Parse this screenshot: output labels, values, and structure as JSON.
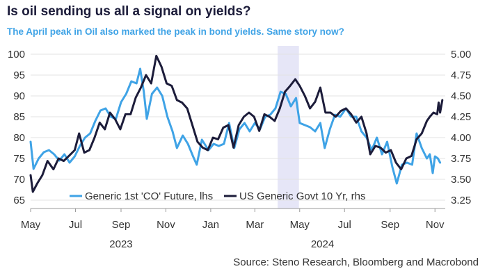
{
  "header": {
    "title": "Is oil sending us all a signal on yields?",
    "subtitle": "The April peak in Oil also marked the peak in bond yields. Same story now?"
  },
  "footer": {
    "source": "Source: Steno Research, Bloomberg and Macrobond"
  },
  "colors": {
    "oil": "#3fa3e6",
    "yield": "#1c1c3a",
    "highlight": "#e6e6f7",
    "grid": "#e3e3e3"
  },
  "chart_data": {
    "type": "line",
    "title": "Is oil sending us all a signal on yields?",
    "subtitle": "The April peak in Oil also marked the peak in bond yields. Same story now?",
    "xlim": [
      "2023-05-01",
      "2024-11-15"
    ],
    "ylim_left": [
      63,
      102
    ],
    "ylim_right": [
      3.15,
      5.1
    ],
    "y_ticks_left": [
      65,
      70,
      75,
      80,
      85,
      90,
      95,
      100
    ],
    "y_ticks_right": [
      "3.25",
      "3.50",
      "3.75",
      "4.00",
      "4.25",
      "4.50",
      "4.75",
      "5.00"
    ],
    "y_ticks_right_values": [
      3.25,
      3.5,
      3.75,
      4.0,
      4.25,
      4.5,
      4.75,
      5.0
    ],
    "x_ticks": [
      {
        "date": "2023-05-01",
        "label": "May"
      },
      {
        "date": "2023-07-01",
        "label": "Jul"
      },
      {
        "date": "2023-09-01",
        "label": "Sep"
      },
      {
        "date": "2023-11-01",
        "label": "Nov"
      },
      {
        "date": "2024-01-01",
        "label": "Jan"
      },
      {
        "date": "2024-03-01",
        "label": "Mar"
      },
      {
        "date": "2024-05-01",
        "label": "May"
      },
      {
        "date": "2024-07-01",
        "label": "Jul"
      },
      {
        "date": "2024-09-01",
        "label": "Sep"
      },
      {
        "date": "2024-11-01",
        "label": "Nov"
      }
    ],
    "year_labels": [
      {
        "date": "2023-09-01",
        "label": "2023"
      },
      {
        "date": "2024-06-01",
        "label": "2024"
      }
    ],
    "highlight_band": [
      "2024-04-01",
      "2024-04-30"
    ],
    "grid": true,
    "legend_position": "bottom-center",
    "series": [
      {
        "name": "Generic 1st 'CO' Future, lhs",
        "axis": "left",
        "color": "#3fa3e6",
        "points": [
          [
            "2023-05-01",
            79.0
          ],
          [
            "2023-05-05",
            72.5
          ],
          [
            "2023-05-12",
            75.0
          ],
          [
            "2023-05-19",
            76.5
          ],
          [
            "2023-05-26",
            77.0
          ],
          [
            "2023-06-02",
            76.0
          ],
          [
            "2023-06-09",
            74.5
          ],
          [
            "2023-06-16",
            76.0
          ],
          [
            "2023-06-23",
            74.0
          ],
          [
            "2023-06-30",
            75.5
          ],
          [
            "2023-07-07",
            78.0
          ],
          [
            "2023-07-14",
            80.0
          ],
          [
            "2023-07-21",
            81.0
          ],
          [
            "2023-07-28",
            84.0
          ],
          [
            "2023-08-04",
            86.5
          ],
          [
            "2023-08-11",
            87.0
          ],
          [
            "2023-08-18",
            85.0
          ],
          [
            "2023-08-25",
            84.5
          ],
          [
            "2023-09-01",
            88.5
          ],
          [
            "2023-09-08",
            90.5
          ],
          [
            "2023-09-15",
            93.5
          ],
          [
            "2023-09-22",
            93.0
          ],
          [
            "2023-09-27",
            96.5
          ],
          [
            "2023-10-02",
            91.0
          ],
          [
            "2023-10-06",
            84.5
          ],
          [
            "2023-10-13",
            90.5
          ],
          [
            "2023-10-20",
            92.0
          ],
          [
            "2023-10-27",
            90.0
          ],
          [
            "2023-11-03",
            85.0
          ],
          [
            "2023-11-10",
            81.5
          ],
          [
            "2023-11-16",
            77.5
          ],
          [
            "2023-11-24",
            80.5
          ],
          [
            "2023-12-01",
            78.5
          ],
          [
            "2023-12-08",
            75.5
          ],
          [
            "2023-12-13",
            73.5
          ],
          [
            "2023-12-20",
            79.5
          ],
          [
            "2023-12-29",
            77.0
          ],
          [
            "2024-01-05",
            78.5
          ],
          [
            "2024-01-12",
            78.0
          ],
          [
            "2024-01-19",
            78.5
          ],
          [
            "2024-01-26",
            83.5
          ],
          [
            "2024-02-02",
            77.5
          ],
          [
            "2024-02-09",
            82.0
          ],
          [
            "2024-02-16",
            83.5
          ],
          [
            "2024-02-23",
            81.5
          ],
          [
            "2024-03-01",
            83.5
          ],
          [
            "2024-03-08",
            82.0
          ],
          [
            "2024-03-15",
            85.0
          ],
          [
            "2024-03-22",
            85.5
          ],
          [
            "2024-03-29",
            87.0
          ],
          [
            "2024-04-05",
            91.0
          ],
          [
            "2024-04-12",
            90.5
          ],
          [
            "2024-04-19",
            87.5
          ],
          [
            "2024-04-26",
            89.5
          ],
          [
            "2024-05-01",
            83.5
          ],
          [
            "2024-05-08",
            83.0
          ],
          [
            "2024-05-15",
            82.5
          ],
          [
            "2024-05-22",
            81.5
          ],
          [
            "2024-05-29",
            83.5
          ],
          [
            "2024-06-04",
            77.5
          ],
          [
            "2024-06-11",
            82.0
          ],
          [
            "2024-06-18",
            85.5
          ],
          [
            "2024-06-25",
            85.0
          ],
          [
            "2024-07-03",
            87.0
          ],
          [
            "2024-07-10",
            85.0
          ],
          [
            "2024-07-17",
            85.0
          ],
          [
            "2024-07-24",
            81.5
          ],
          [
            "2024-07-31",
            80.0
          ],
          [
            "2024-08-07",
            77.0
          ],
          [
            "2024-08-14",
            80.0
          ],
          [
            "2024-08-21",
            76.0
          ],
          [
            "2024-08-28",
            79.0
          ],
          [
            "2024-09-04",
            73.0
          ],
          [
            "2024-09-10",
            69.0
          ],
          [
            "2024-09-17",
            73.5
          ],
          [
            "2024-09-24",
            74.0
          ],
          [
            "2024-10-01",
            73.5
          ],
          [
            "2024-10-07",
            81.0
          ],
          [
            "2024-10-14",
            77.5
          ],
          [
            "2024-10-21",
            75.0
          ],
          [
            "2024-10-25",
            76.0
          ],
          [
            "2024-10-29",
            71.5
          ],
          [
            "2024-11-01",
            75.5
          ],
          [
            "2024-11-05",
            75.0
          ],
          [
            "2024-11-08",
            74.0
          ]
        ]
      },
      {
        "name": "US Generic Govt 10 Yr, rhs",
        "axis": "right",
        "color": "#1c1c3a",
        "points": [
          [
            "2023-05-01",
            3.55
          ],
          [
            "2023-05-04",
            3.35
          ],
          [
            "2023-05-10",
            3.45
          ],
          [
            "2023-05-17",
            3.55
          ],
          [
            "2023-05-24",
            3.72
          ],
          [
            "2023-06-01",
            3.62
          ],
          [
            "2023-06-08",
            3.75
          ],
          [
            "2023-06-15",
            3.72
          ],
          [
            "2023-06-22",
            3.78
          ],
          [
            "2023-06-30",
            3.85
          ],
          [
            "2023-07-06",
            4.05
          ],
          [
            "2023-07-13",
            3.82
          ],
          [
            "2023-07-20",
            3.85
          ],
          [
            "2023-07-27",
            4.0
          ],
          [
            "2023-08-03",
            4.18
          ],
          [
            "2023-08-10",
            4.1
          ],
          [
            "2023-08-17",
            4.3
          ],
          [
            "2023-08-24",
            4.22
          ],
          [
            "2023-08-31",
            4.1
          ],
          [
            "2023-09-07",
            4.28
          ],
          [
            "2023-09-14",
            4.28
          ],
          [
            "2023-09-21",
            4.48
          ],
          [
            "2023-09-28",
            4.6
          ],
          [
            "2023-10-05",
            4.75
          ],
          [
            "2023-10-12",
            4.65
          ],
          [
            "2023-10-19",
            4.98
          ],
          [
            "2023-10-26",
            4.85
          ],
          [
            "2023-11-02",
            4.65
          ],
          [
            "2023-11-09",
            4.62
          ],
          [
            "2023-11-16",
            4.45
          ],
          [
            "2023-11-23",
            4.42
          ],
          [
            "2023-11-30",
            4.35
          ],
          [
            "2023-12-07",
            4.15
          ],
          [
            "2023-12-14",
            3.95
          ],
          [
            "2023-12-21",
            3.88
          ],
          [
            "2023-12-28",
            3.85
          ],
          [
            "2024-01-04",
            4.0
          ],
          [
            "2024-01-11",
            3.98
          ],
          [
            "2024-01-18",
            4.12
          ],
          [
            "2024-01-25",
            4.15
          ],
          [
            "2024-02-01",
            3.88
          ],
          [
            "2024-02-08",
            4.15
          ],
          [
            "2024-02-15",
            4.25
          ],
          [
            "2024-02-22",
            4.3
          ],
          [
            "2024-02-29",
            4.25
          ],
          [
            "2024-03-07",
            4.08
          ],
          [
            "2024-03-14",
            4.28
          ],
          [
            "2024-03-21",
            4.25
          ],
          [
            "2024-03-28",
            4.2
          ],
          [
            "2024-04-04",
            4.35
          ],
          [
            "2024-04-11",
            4.55
          ],
          [
            "2024-04-18",
            4.62
          ],
          [
            "2024-04-25",
            4.7
          ],
          [
            "2024-05-01",
            4.62
          ],
          [
            "2024-05-08",
            4.5
          ],
          [
            "2024-05-15",
            4.35
          ],
          [
            "2024-05-22",
            4.43
          ],
          [
            "2024-05-29",
            4.6
          ],
          [
            "2024-06-05",
            4.3
          ],
          [
            "2024-06-12",
            4.3
          ],
          [
            "2024-06-19",
            4.25
          ],
          [
            "2024-06-26",
            4.32
          ],
          [
            "2024-07-03",
            4.35
          ],
          [
            "2024-07-10",
            4.28
          ],
          [
            "2024-07-17",
            4.18
          ],
          [
            "2024-07-24",
            4.25
          ],
          [
            "2024-07-31",
            4.05
          ],
          [
            "2024-08-05",
            3.8
          ],
          [
            "2024-08-12",
            3.9
          ],
          [
            "2024-08-19",
            3.88
          ],
          [
            "2024-08-26",
            3.82
          ],
          [
            "2024-09-02",
            3.85
          ],
          [
            "2024-09-09",
            3.7
          ],
          [
            "2024-09-16",
            3.62
          ],
          [
            "2024-09-23",
            3.75
          ],
          [
            "2024-09-30",
            3.78
          ],
          [
            "2024-10-07",
            3.98
          ],
          [
            "2024-10-14",
            4.05
          ],
          [
            "2024-10-21",
            4.2
          ],
          [
            "2024-10-25",
            4.25
          ],
          [
            "2024-10-30",
            4.3
          ],
          [
            "2024-11-04",
            4.28
          ],
          [
            "2024-11-06",
            4.42
          ],
          [
            "2024-11-08",
            4.3
          ],
          [
            "2024-11-11",
            4.45
          ]
        ]
      }
    ]
  }
}
